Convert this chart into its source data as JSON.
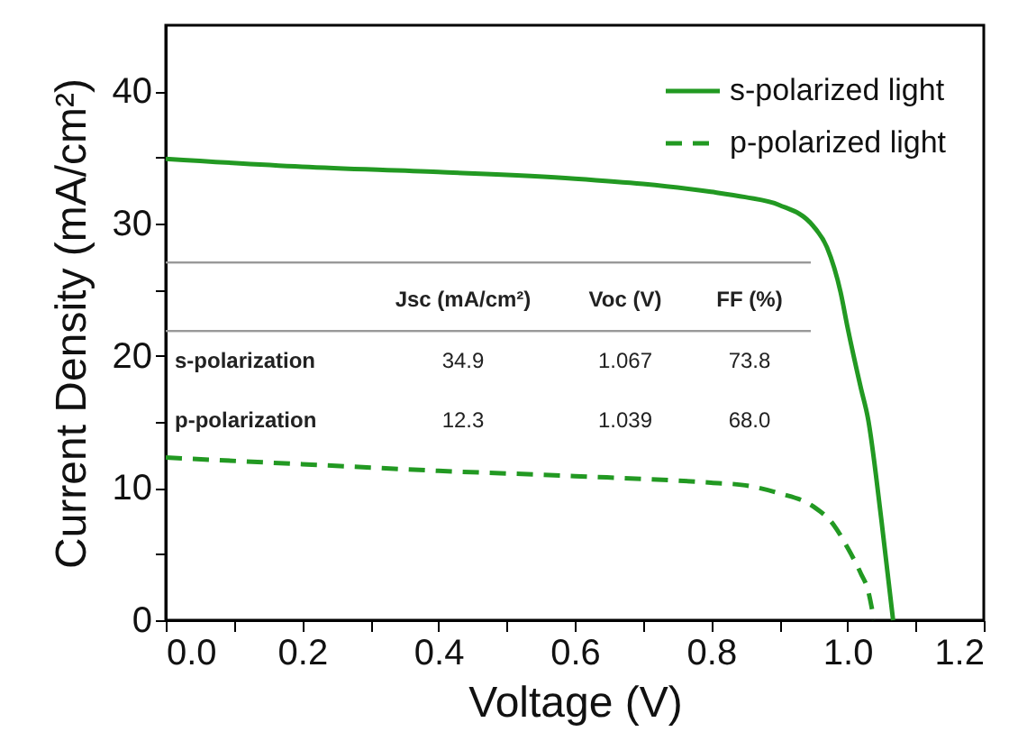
{
  "chart_data": {
    "type": "line",
    "xlabel": "Voltage (V)",
    "ylabel": "Current Density (mA/cm²)",
    "xlim": [
      0,
      1.2
    ],
    "xticks": [
      {
        "value": 0,
        "label": "0.0"
      },
      {
        "value": 0.1,
        "label": null
      },
      {
        "value": 0.2,
        "label": "0.2"
      },
      {
        "value": 0.3,
        "label": null
      },
      {
        "value": 0.4,
        "label": "0.4"
      },
      {
        "value": 0.5,
        "label": null
      },
      {
        "value": 0.6,
        "label": "0.6"
      },
      {
        "value": 0.7,
        "label": null
      },
      {
        "value": 0.8,
        "label": "0.8"
      },
      {
        "value": 0.9,
        "label": null
      },
      {
        "value": 1.0,
        "label": "1.0"
      },
      {
        "value": 1.1,
        "label": null
      },
      {
        "value": 1.2,
        "label": "1.2"
      }
    ],
    "ylim": [
      0,
      45
    ],
    "yticks": [
      0,
      {
        "value": 5,
        "label": null
      },
      10,
      {
        "value": 15,
        "label": null
      },
      20,
      {
        "value": 25,
        "label": null
      },
      30,
      {
        "value": 35,
        "label": null
      },
      40
    ],
    "grid": false,
    "legend": "top right",
    "marker": "none",
    "series": [
      {
        "name": "s-polarized light",
        "color": "#229922",
        "line_style": "solid",
        "x": [
          0,
          0.2,
          0.4,
          0.6,
          0.7,
          0.8,
          0.85,
          0.9,
          0.95,
          0.97,
          0.99,
          1.0,
          1.02,
          1.03,
          1.05,
          1.067
        ],
        "values": [
          34.9,
          34.3,
          33.9,
          33.4,
          33.0,
          32.4,
          32.0,
          31.4,
          29.8,
          28.2,
          24.8,
          22.2,
          17.5,
          15.3,
          7.5,
          0
        ]
      },
      {
        "name": "p-polarized light",
        "color": "#229922",
        "line_style": "dashed",
        "x": [
          0,
          0.2,
          0.4,
          0.6,
          0.8,
          0.85,
          0.9,
          0.95,
          0.98,
          1.0,
          1.02,
          1.03,
          1.039
        ],
        "values": [
          12.3,
          11.8,
          11.3,
          10.9,
          10.4,
          10.2,
          9.6,
          8.6,
          7.2,
          5.5,
          3.5,
          2.3,
          0
        ]
      }
    ],
    "annotations": [
      "Jsc (mA/cm²)",
      "Voc (V)",
      "FF (%)",
      "s-polarization",
      "34.9",
      "1.067",
      "73.8",
      "p-polarization",
      "12.3",
      "1.039",
      "68.0"
    ]
  }
}
